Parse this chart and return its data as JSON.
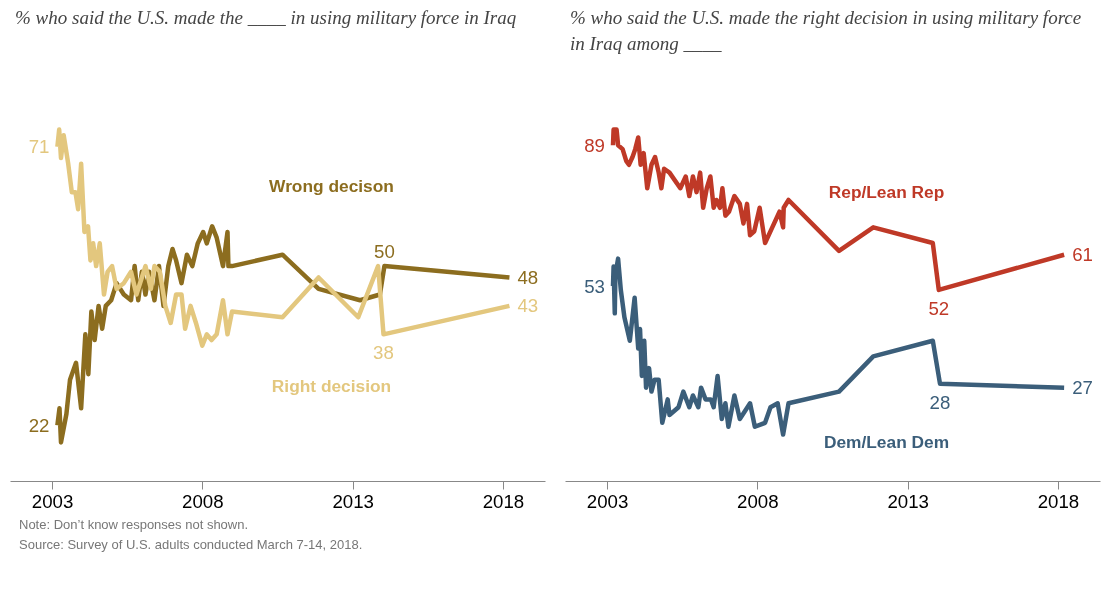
{
  "chart_data": [
    {
      "type": "line",
      "title": "% who said the U.S. made the ____ in using military force in Iraq",
      "xlim": [
        2001.6,
        2019.4
      ],
      "xticks": [
        2003,
        2008,
        2013,
        2018
      ],
      "tick_labels": "x",
      "grid": false,
      "annotations": [
        "Note: Don’t know responses not shown.",
        "Source: Survey of U.S. adults conducted March 7-14, 2018."
      ],
      "series": [
        {
          "name": "Wrong decison",
          "color": "#8c6d1f",
          "x": [
            2003.16,
            2003.23,
            2003.28,
            2003.46,
            2003.58,
            2003.78,
            2003.95,
            2004.09,
            2004.19,
            2004.29,
            2004.4,
            2004.53,
            2004.65,
            2004.77,
            2004.95,
            2005.13,
            2005.37,
            2005.61,
            2005.73,
            2005.85,
            2005.97,
            2006.09,
            2006.21,
            2006.39,
            2006.54,
            2006.69,
            2006.85,
            2006.99,
            2007.11,
            2007.29,
            2007.47,
            2007.65,
            2007.83,
            2008.01,
            2008.13,
            2008.31,
            2008.46,
            2008.67,
            2008.82,
            2008.85,
            2008.97,
            2010.65,
            2011.85,
            2013.23,
            2013.89,
            2014.04,
            2018.2
          ],
          "values": [
            22,
            25,
            19,
            24,
            30,
            33,
            25,
            38,
            31,
            42,
            37,
            43,
            39,
            43,
            44,
            47,
            45,
            44,
            50,
            44,
            49,
            45,
            49,
            44,
            50,
            43,
            50,
            53,
            51,
            47,
            52,
            50,
            54,
            56,
            54,
            57,
            55,
            50,
            56,
            50,
            50,
            52,
            46,
            44,
            45,
            50,
            48
          ],
          "value_labels": [
            "22",
            null,
            null,
            null,
            null,
            null,
            null,
            null,
            null,
            null,
            null,
            null,
            null,
            null,
            null,
            null,
            null,
            null,
            null,
            null,
            null,
            null,
            null,
            null,
            null,
            null,
            null,
            null,
            null,
            null,
            null,
            null,
            null,
            null,
            null,
            null,
            null,
            null,
            null,
            null,
            null,
            null,
            null,
            null,
            null,
            "50",
            "48"
          ]
        },
        {
          "name": "Right decision",
          "color": "#e3c77e",
          "x": [
            2003.16,
            2003.22,
            2003.28,
            2003.37,
            2003.52,
            2003.64,
            2003.76,
            2003.85,
            2003.95,
            2004.06,
            2004.18,
            2004.26,
            2004.35,
            2004.45,
            2004.57,
            2004.71,
            2004.83,
            2004.98,
            2005.13,
            2005.37,
            2005.61,
            2005.79,
            2005.97,
            2006.09,
            2006.27,
            2006.39,
            2006.57,
            2006.75,
            2006.93,
            2007.11,
            2007.29,
            2007.41,
            2007.59,
            2007.77,
            2007.98,
            2008.13,
            2008.29,
            2008.46,
            2008.67,
            2008.82,
            2008.97,
            2010.65,
            2011.85,
            2013.17,
            2013.83,
            2014.01,
            2018.2
          ],
          "values": [
            71,
            74,
            69,
            73,
            68,
            63,
            63,
            60,
            68,
            56,
            57,
            51,
            54,
            50,
            54,
            45,
            49,
            50,
            46,
            47,
            49,
            45,
            48,
            50,
            46,
            50,
            49,
            43,
            40,
            45,
            45,
            39,
            43,
            40,
            36,
            38,
            37,
            38,
            44,
            38,
            42,
            41,
            48,
            41,
            50,
            38,
            43
          ],
          "value_labels": [
            "71",
            null,
            null,
            null,
            null,
            null,
            null,
            null,
            null,
            null,
            null,
            null,
            null,
            null,
            null,
            null,
            null,
            null,
            null,
            null,
            null,
            null,
            null,
            null,
            null,
            null,
            null,
            null,
            null,
            null,
            null,
            null,
            null,
            null,
            null,
            null,
            null,
            null,
            null,
            null,
            null,
            null,
            null,
            null,
            null,
            "38",
            "43"
          ]
        }
      ]
    },
    {
      "type": "line",
      "title": "% who said the U.S. made the right decision in using military force in Iraq among ____",
      "xlim": [
        2001.6,
        2019.4
      ],
      "xticks": [
        2003,
        2008,
        2013,
        2018
      ],
      "tick_labels": "x",
      "grid": false,
      "series": [
        {
          "name": "Rep/Lean Rep",
          "color": "#bf3927",
          "x": [
            2003.18,
            2003.2,
            2003.3,
            2003.35,
            2003.5,
            2003.62,
            2003.71,
            2003.83,
            2003.92,
            2004.02,
            2004.1,
            2004.2,
            2004.32,
            2004.46,
            2004.58,
            2004.7,
            2004.79,
            2004.88,
            2005.06,
            2005.42,
            2005.6,
            2005.72,
            2005.84,
            2005.96,
            2006.08,
            2006.18,
            2006.3,
            2006.42,
            2006.53,
            2006.62,
            2006.74,
            2006.82,
            2006.92,
            2007.04,
            2007.22,
            2007.4,
            2007.52,
            2007.64,
            2007.74,
            2007.88,
            2008.06,
            2008.24,
            2008.48,
            2008.72,
            2008.84,
            2008.86,
            2009.02,
            2010.7,
            2011.84,
            2013.82,
            2014.02,
            2018.19
          ],
          "values": [
            89,
            93,
            93,
            89,
            88,
            85,
            84,
            86,
            88,
            91,
            84,
            87,
            78,
            84,
            86,
            82,
            78,
            83,
            82,
            78,
            81,
            76,
            81,
            77,
            82,
            73,
            78,
            81,
            73,
            75,
            73,
            78,
            71,
            72,
            76,
            74,
            69,
            74,
            66,
            67,
            73,
            64,
            68,
            72,
            68,
            73,
            75,
            62,
            68,
            64,
            52,
            61
          ],
          "value_labels": [
            "89",
            null,
            null,
            null,
            null,
            null,
            null,
            null,
            null,
            null,
            null,
            null,
            null,
            null,
            null,
            null,
            null,
            null,
            null,
            null,
            null,
            null,
            null,
            null,
            null,
            null,
            null,
            null,
            null,
            null,
            null,
            null,
            null,
            null,
            null,
            null,
            null,
            null,
            null,
            null,
            null,
            null,
            null,
            null,
            null,
            null,
            null,
            null,
            null,
            null,
            "52",
            "61"
          ]
        },
        {
          "name": "Dem/Lean Dem",
          "color": "#3b5e7a",
          "x": [
            2003.18,
            2003.2,
            2003.24,
            2003.26,
            2003.35,
            2003.44,
            2003.56,
            2003.74,
            2003.9,
            2004.02,
            2004.08,
            2004.14,
            2004.22,
            2004.28,
            2004.38,
            2004.46,
            2004.56,
            2004.7,
            2004.82,
            2005.0,
            2005.06,
            2005.36,
            2005.52,
            2005.72,
            2005.84,
            2006.02,
            2006.11,
            2006.26,
            2006.44,
            2006.53,
            2006.66,
            2006.8,
            2006.92,
            2007.02,
            2007.22,
            2007.4,
            2007.74,
            2007.9,
            2008.24,
            2008.42,
            2008.66,
            2008.84,
            2009.02,
            2010.7,
            2011.84,
            2013.82,
            2014.06,
            2018.19
          ],
          "values": [
            53,
            58,
            46,
            56,
            60,
            52,
            45,
            39,
            50,
            37,
            42,
            30,
            39,
            27,
            32,
            26,
            29,
            29,
            18,
            24,
            20,
            22,
            26,
            22,
            25,
            22,
            27,
            24,
            24,
            22,
            30,
            19,
            23,
            17,
            25,
            19,
            23,
            17,
            18,
            22,
            23,
            15,
            23,
            26,
            35,
            39,
            28,
            27
          ],
          "value_labels": [
            "53",
            null,
            null,
            null,
            null,
            null,
            null,
            null,
            null,
            null,
            null,
            null,
            null,
            null,
            null,
            null,
            null,
            null,
            null,
            null,
            null,
            null,
            null,
            null,
            null,
            null,
            null,
            null,
            null,
            null,
            null,
            null,
            null,
            null,
            null,
            null,
            null,
            null,
            null,
            null,
            null,
            null,
            null,
            null,
            null,
            null,
            "28",
            "27"
          ]
        }
      ]
    }
  ]
}
